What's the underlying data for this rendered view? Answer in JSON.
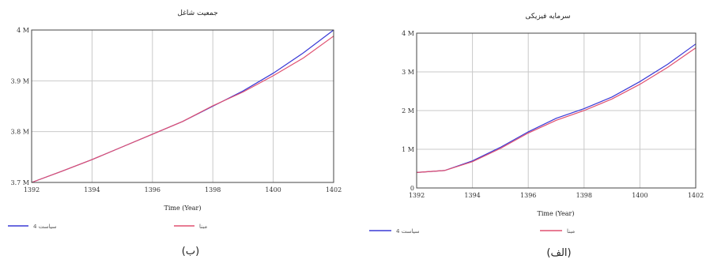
{
  "colors": {
    "blue": "#3a3ad6",
    "red": "#e05070"
  },
  "chart_data": [
    {
      "id": "b",
      "type": "line",
      "title": "جمعیت شاغل",
      "caption": "(ب)",
      "xlabel": "Time (Year)",
      "x_ticks": [
        "1392",
        "1394",
        "1396",
        "1398",
        "1400",
        "1402"
      ],
      "y_ticks": [
        "3.7 M",
        "3.8 M",
        "3.9 M",
        "4 M"
      ],
      "y_tick_values": [
        3.7,
        3.8,
        3.9,
        4.0
      ],
      "xlim": [
        1392,
        1402
      ],
      "ylim": [
        3.7,
        4.0
      ],
      "grid": true,
      "legend": [
        {
          "label": "سیاست 4",
          "color": "#3a3ad6"
        },
        {
          "label": "مبنا",
          "color": "#e05070"
        }
      ],
      "series": [
        {
          "name": "سیاست 4",
          "color": "#3a3ad6",
          "x": [
            1392,
            1393,
            1394,
            1395,
            1396,
            1397,
            1398,
            1399,
            1400,
            1401,
            1402
          ],
          "y": [
            3.7,
            3.722,
            3.745,
            3.77,
            3.795,
            3.82,
            3.85,
            3.88,
            3.915,
            3.955,
            4.0
          ]
        },
        {
          "name": "مبنا",
          "color": "#e05070",
          "x": [
            1392,
            1393,
            1394,
            1395,
            1396,
            1397,
            1398,
            1399,
            1400,
            1401,
            1402
          ],
          "y": [
            3.7,
            3.722,
            3.745,
            3.77,
            3.795,
            3.82,
            3.851,
            3.878,
            3.91,
            3.945,
            3.988
          ]
        }
      ]
    },
    {
      "id": "alef",
      "type": "line",
      "title": "سرمایه فیزیکی",
      "caption": "(الف)",
      "xlabel": "Time (Year)",
      "x_ticks": [
        "1392",
        "1394",
        "1396",
        "1398",
        "1400",
        "1402"
      ],
      "y_ticks": [
        "0",
        "1 M",
        "2 M",
        "3 M",
        "4 M"
      ],
      "y_tick_values": [
        0,
        1,
        2,
        3,
        4
      ],
      "xlim": [
        1392,
        1402
      ],
      "ylim": [
        0,
        4
      ],
      "grid": true,
      "legend": [
        {
          "label": "سیاست 4",
          "color": "#3a3ad6"
        },
        {
          "label": "مبنا",
          "color": "#e05070"
        }
      ],
      "series": [
        {
          "name": "سیاست 4",
          "color": "#3a3ad6",
          "x": [
            1392,
            1393,
            1394,
            1395,
            1396,
            1397,
            1398,
            1399,
            1400,
            1401,
            1402
          ],
          "y": [
            0.4,
            0.45,
            0.7,
            1.05,
            1.45,
            1.8,
            2.05,
            2.35,
            2.75,
            3.2,
            3.72
          ]
        },
        {
          "name": "مبنا",
          "color": "#e05070",
          "x": [
            1392,
            1393,
            1394,
            1395,
            1396,
            1397,
            1398,
            1399,
            1400,
            1401,
            1402
          ],
          "y": [
            0.4,
            0.45,
            0.68,
            1.02,
            1.42,
            1.75,
            2.0,
            2.3,
            2.68,
            3.12,
            3.62
          ]
        }
      ]
    }
  ]
}
